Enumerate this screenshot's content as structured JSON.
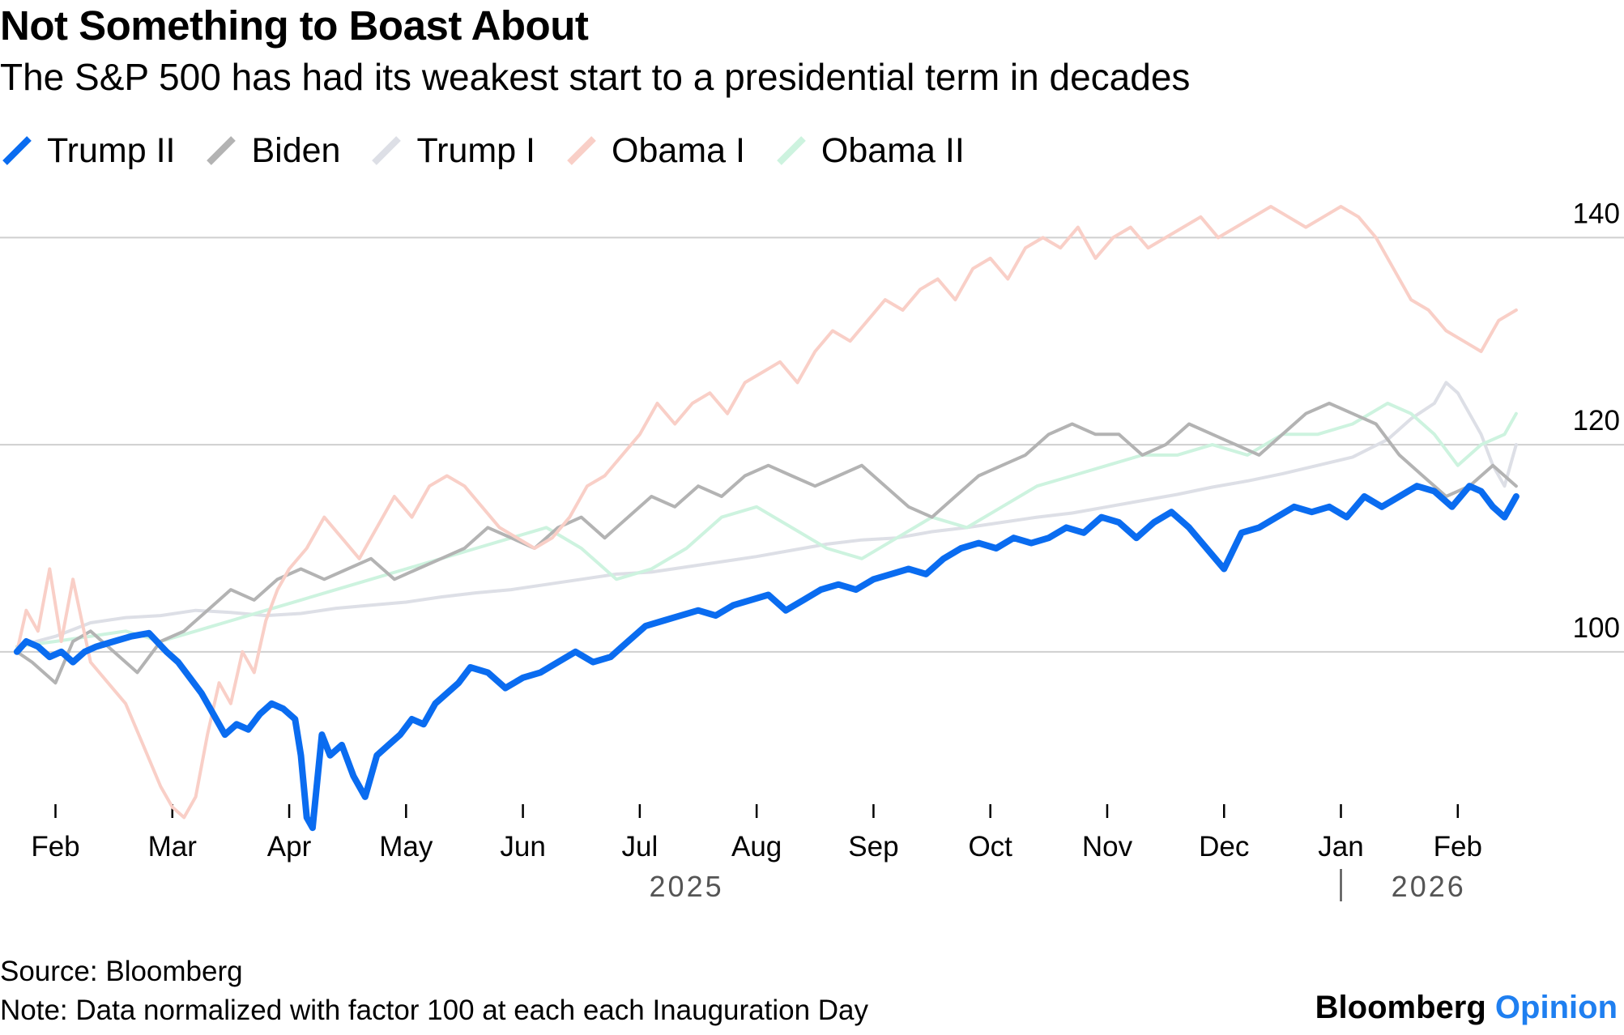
{
  "header": {
    "title": "Not Something to Boast About",
    "subtitle": "The S&P 500 has had its weakest start to a presidential term in decades"
  },
  "footer": {
    "source": "Source: Bloomberg",
    "note": "Note: Data normalized with factor 100 at each each Inauguration Day",
    "brand_main": "Bloomberg",
    "brand_accent": "Opinion"
  },
  "colors": {
    "trump2": "#0a6cf0",
    "biden": "#b3b3b3",
    "trump1": "#dddfe6",
    "obama1": "#f9cfc7",
    "obama2": "#cdf3df",
    "grid": "#cfcfcf",
    "axis_text": "#000000",
    "year_text": "#555555"
  },
  "chart_data": {
    "type": "line",
    "title": "Not Something to Boast About",
    "subtitle": "The S&P 500 has had its weakest start to a presidential term in decades",
    "xlabel": "",
    "ylabel": "",
    "x_unit": "months since Jan 2025 (0 = Jan 1, 2025)",
    "xlim": [
      0.65,
      13.75
    ],
    "ylim": [
      82,
      143
    ],
    "yticks": [
      100,
      120,
      140
    ],
    "grid": true,
    "legend_position": "top-left",
    "x_ticks": [
      {
        "label": "Feb",
        "x": 1.0
      },
      {
        "label": "Mar",
        "x": 2.0
      },
      {
        "label": "Apr",
        "x": 3.0
      },
      {
        "label": "May",
        "x": 4.0
      },
      {
        "label": "Jun",
        "x": 5.0
      },
      {
        "label": "Jul",
        "x": 6.0
      },
      {
        "label": "Aug",
        "x": 7.0
      },
      {
        "label": "Sep",
        "x": 8.0
      },
      {
        "label": "Oct",
        "x": 9.0
      },
      {
        "label": "Nov",
        "x": 10.0
      },
      {
        "label": "Dec",
        "x": 11.0
      },
      {
        "label": "Jan",
        "x": 12.0
      },
      {
        "label": "Feb",
        "x": 13.0
      }
    ],
    "year_labels": [
      {
        "label": "2025",
        "x": 6.4
      },
      {
        "label": "2026",
        "x": 12.75
      }
    ],
    "year_divider_x": 12.0,
    "series": [
      {
        "key": "trump1",
        "name": "Trump I",
        "x": [
          0.67,
          1.0,
          1.3,
          1.6,
          1.9,
          2.2,
          2.5,
          2.8,
          3.1,
          3.4,
          3.7,
          4.0,
          4.3,
          4.6,
          4.9,
          5.2,
          5.5,
          5.8,
          6.1,
          6.4,
          6.7,
          7.0,
          7.3,
          7.6,
          7.9,
          8.2,
          8.5,
          8.8,
          9.1,
          9.4,
          9.7,
          10.0,
          10.3,
          10.6,
          10.9,
          11.2,
          11.5,
          11.8,
          12.1,
          12.4,
          12.6,
          12.8,
          12.9,
          13.0,
          13.1,
          13.2,
          13.3,
          13.4,
          13.5
        ],
        "y": [
          100.5,
          101.5,
          102.8,
          103.3,
          103.5,
          104,
          103.8,
          103.5,
          103.7,
          104.2,
          104.5,
          104.8,
          105.3,
          105.7,
          106,
          106.5,
          107,
          107.5,
          107.7,
          108.2,
          108.7,
          109.2,
          109.8,
          110.4,
          110.8,
          111,
          111.6,
          112,
          112.5,
          113,
          113.4,
          114,
          114.6,
          115.2,
          115.9,
          116.5,
          117.2,
          118,
          118.8,
          120.5,
          122.5,
          124,
          126,
          125,
          123,
          121,
          118,
          116,
          120
        ]
      },
      {
        "key": "obama2",
        "name": "Obama II",
        "x": [
          0.67,
          1.0,
          1.3,
          1.6,
          1.9,
          2.2,
          2.5,
          2.8,
          3.1,
          3.4,
          3.7,
          4.0,
          4.3,
          4.6,
          4.9,
          5.2,
          5.5,
          5.8,
          6.1,
          6.4,
          6.7,
          7.0,
          7.3,
          7.6,
          7.9,
          8.2,
          8.5,
          8.8,
          9.1,
          9.4,
          9.7,
          10.0,
          10.3,
          10.6,
          10.9,
          11.2,
          11.5,
          11.8,
          12.1,
          12.4,
          12.6,
          12.8,
          13.0,
          13.2,
          13.4,
          13.5
        ],
        "y": [
          100.5,
          101,
          101.5,
          102,
          101,
          102,
          103,
          104,
          105,
          106,
          107,
          108,
          109,
          110,
          111,
          112,
          110,
          107,
          108,
          110,
          113,
          114,
          112,
          110,
          109,
          111,
          113,
          112,
          114,
          116,
          117,
          118,
          119,
          119,
          120,
          119,
          121,
          121,
          122,
          124,
          123,
          121,
          118,
          120,
          121,
          123
        ]
      },
      {
        "key": "biden",
        "name": "Biden",
        "x": [
          0.67,
          0.8,
          1.0,
          1.15,
          1.3,
          1.5,
          1.7,
          1.9,
          2.1,
          2.3,
          2.5,
          2.7,
          2.9,
          3.1,
          3.3,
          3.5,
          3.7,
          3.9,
          4.1,
          4.3,
          4.5,
          4.7,
          4.9,
          5.1,
          5.3,
          5.5,
          5.7,
          5.9,
          6.1,
          6.3,
          6.5,
          6.7,
          6.9,
          7.1,
          7.3,
          7.5,
          7.7,
          7.9,
          8.1,
          8.3,
          8.5,
          8.7,
          8.9,
          9.1,
          9.3,
          9.5,
          9.7,
          9.9,
          10.1,
          10.3,
          10.5,
          10.7,
          10.9,
          11.1,
          11.3,
          11.5,
          11.7,
          11.9,
          12.1,
          12.3,
          12.5,
          12.7,
          12.9,
          13.1,
          13.3,
          13.5
        ],
        "y": [
          100,
          99,
          97,
          101,
          102,
          100,
          98,
          101,
          102,
          104,
          106,
          105,
          107,
          108,
          107,
          108,
          109,
          107,
          108,
          109,
          110,
          112,
          111,
          110,
          112,
          113,
          111,
          113,
          115,
          114,
          116,
          115,
          117,
          118,
          117,
          116,
          117,
          118,
          116,
          114,
          113,
          115,
          117,
          118,
          119,
          121,
          122,
          121,
          121,
          119,
          120,
          122,
          121,
          120,
          119,
          121,
          123,
          124,
          123,
          122,
          119,
          117,
          115,
          116,
          118,
          116
        ]
      },
      {
        "key": "obama1",
        "name": "Obama I",
        "x": [
          0.67,
          0.75,
          0.85,
          0.95,
          1.05,
          1.15,
          1.3,
          1.45,
          1.6,
          1.75,
          1.9,
          2.0,
          2.1,
          2.2,
          2.3,
          2.4,
          2.5,
          2.6,
          2.7,
          2.8,
          2.9,
          3.0,
          3.15,
          3.3,
          3.45,
          3.6,
          3.75,
          3.9,
          4.05,
          4.2,
          4.35,
          4.5,
          4.65,
          4.8,
          4.95,
          5.1,
          5.25,
          5.4,
          5.55,
          5.7,
          5.85,
          6.0,
          6.15,
          6.3,
          6.45,
          6.6,
          6.75,
          6.9,
          7.05,
          7.2,
          7.35,
          7.5,
          7.65,
          7.8,
          7.95,
          8.1,
          8.25,
          8.4,
          8.55,
          8.7,
          8.85,
          9.0,
          9.15,
          9.3,
          9.45,
          9.6,
          9.75,
          9.9,
          10.05,
          10.2,
          10.35,
          10.5,
          10.65,
          10.8,
          10.95,
          11.1,
          11.25,
          11.4,
          11.55,
          11.7,
          11.85,
          12.0,
          12.15,
          12.3,
          12.45,
          12.6,
          12.75,
          12.9,
          13.05,
          13.2,
          13.35,
          13.5
        ],
        "y": [
          100,
          104,
          102,
          108,
          101,
          107,
          99,
          97,
          95,
          91,
          87,
          85,
          84,
          86,
          92,
          97,
          95,
          100,
          98,
          103,
          106,
          108,
          110,
          113,
          111,
          109,
          112,
          115,
          113,
          116,
          117,
          116,
          114,
          112,
          111,
          110,
          111,
          113,
          116,
          117,
          119,
          121,
          124,
          122,
          124,
          125,
          123,
          126,
          127,
          128,
          126,
          129,
          131,
          130,
          132,
          134,
          133,
          135,
          136,
          134,
          137,
          138,
          136,
          139,
          140,
          139,
          141,
          138,
          140,
          141,
          139,
          140,
          141,
          142,
          140,
          141,
          142,
          143,
          142,
          141,
          142,
          143,
          142,
          140,
          137,
          134,
          133,
          131,
          130,
          129,
          132,
          133
        ]
      },
      {
        "key": "trump2",
        "name": "Trump II",
        "x": [
          0.67,
          0.75,
          0.85,
          0.95,
          1.05,
          1.15,
          1.25,
          1.35,
          1.5,
          1.65,
          1.8,
          1.95,
          2.05,
          2.15,
          2.25,
          2.35,
          2.45,
          2.55,
          2.65,
          2.75,
          2.85,
          2.95,
          3.05,
          3.1,
          3.15,
          3.2,
          3.28,
          3.35,
          3.45,
          3.55,
          3.65,
          3.75,
          3.85,
          3.95,
          4.05,
          4.15,
          4.25,
          4.35,
          4.45,
          4.55,
          4.7,
          4.85,
          5.0,
          5.15,
          5.3,
          5.45,
          5.6,
          5.75,
          5.9,
          6.05,
          6.2,
          6.35,
          6.5,
          6.65,
          6.8,
          6.95,
          7.1,
          7.25,
          7.4,
          7.55,
          7.7,
          7.85,
          8.0,
          8.15,
          8.3,
          8.45,
          8.6,
          8.75,
          8.9,
          9.05,
          9.2,
          9.35,
          9.5,
          9.65,
          9.8,
          9.95,
          10.1,
          10.25,
          10.4,
          10.55,
          10.7,
          10.85,
          11.0,
          11.15,
          11.3,
          11.45,
          11.6,
          11.75,
          11.9,
          12.05,
          12.2,
          12.35,
          12.5,
          12.65,
          12.8,
          12.95,
          13.1,
          13.2,
          13.3,
          13.4,
          13.5
        ],
        "y": [
          100,
          101,
          100.5,
          99.5,
          100,
          99,
          100,
          100.5,
          101,
          101.5,
          101.8,
          100,
          99,
          97.5,
          96,
          94,
          92,
          93,
          92.5,
          94,
          95,
          94.5,
          93.5,
          90,
          84,
          83,
          92,
          90,
          91,
          88,
          86,
          90,
          91,
          92,
          93.5,
          93,
          95,
          96,
          97,
          98.5,
          98,
          96.5,
          97.5,
          98,
          99,
          100,
          99,
          99.5,
          101,
          102.5,
          103,
          103.5,
          104,
          103.5,
          104.5,
          105,
          105.5,
          104,
          105,
          106,
          106.5,
          106,
          107,
          107.5,
          108,
          107.5,
          109,
          110,
          110.5,
          110,
          111,
          110.5,
          111,
          112,
          111.5,
          113,
          112.5,
          111,
          112.5,
          113.5,
          112,
          110,
          108,
          111.5,
          112,
          113,
          114,
          113.5,
          114,
          113,
          115,
          114,
          115,
          116,
          115.5,
          114,
          116,
          115.5,
          114,
          113,
          115
        ]
      }
    ]
  }
}
